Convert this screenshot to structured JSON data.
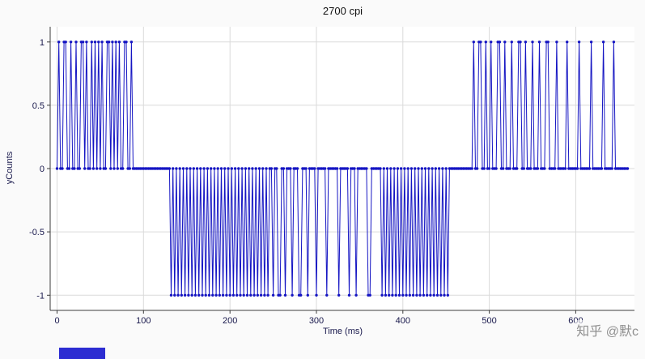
{
  "watermark": "知乎 @默c",
  "colors": {
    "line": "#1515c3",
    "marker": "#1515c3",
    "grid": "#dadada",
    "axis": "#3c3c3c",
    "tick_label": "#17174b",
    "plot_background": "#ffffff",
    "outer_background": "#fafafa",
    "artifact_box": "#2d2dd2",
    "watermark_text": "#8f8f8f"
  },
  "chart_data": {
    "type": "line",
    "title": "2700 cpi",
    "xlabel": "Time (ms)",
    "ylabel": "yCounts",
    "xlim": [
      -8,
      668
    ],
    "ylim": [
      -1.12,
      1.12
    ],
    "x_ticks": [
      0,
      100,
      200,
      300,
      400,
      500,
      600
    ],
    "y_ticks": [
      -1,
      -0.5,
      0,
      0.5,
      1
    ],
    "grid": true,
    "legend": false,
    "marker": "circle",
    "sample_step_ms": 2,
    "x_start": 0,
    "x_end": 660,
    "baseline_value": 0,
    "pulse_groups": [
      {
        "value": 1,
        "pulses": [
          [
            2,
            2
          ],
          [
            8,
            4
          ],
          [
            16,
            2
          ],
          [
            22,
            2
          ],
          [
            28,
            4
          ],
          [
            34,
            2
          ],
          [
            40,
            2
          ],
          [
            44,
            2
          ],
          [
            48,
            2
          ],
          [
            52,
            2
          ],
          [
            58,
            4
          ],
          [
            64,
            2
          ],
          [
            68,
            2
          ],
          [
            72,
            2
          ],
          [
            78,
            4
          ],
          [
            86,
            2
          ]
        ]
      },
      {
        "value": -1,
        "pulses": [
          [
            132,
            2
          ],
          [
            136,
            2
          ],
          [
            140,
            2
          ],
          [
            144,
            2
          ],
          [
            148,
            2
          ],
          [
            152,
            2
          ],
          [
            156,
            2
          ],
          [
            160,
            2
          ],
          [
            164,
            2
          ],
          [
            168,
            2
          ],
          [
            172,
            2
          ],
          [
            176,
            2
          ],
          [
            180,
            2
          ],
          [
            184,
            2
          ],
          [
            188,
            2
          ],
          [
            192,
            2
          ],
          [
            196,
            2
          ],
          [
            200,
            2
          ],
          [
            204,
            2
          ],
          [
            208,
            2
          ],
          [
            212,
            2
          ],
          [
            216,
            2
          ],
          [
            220,
            2
          ],
          [
            224,
            2
          ],
          [
            228,
            2
          ],
          [
            232,
            2
          ],
          [
            236,
            2
          ],
          [
            240,
            2
          ],
          [
            244,
            2
          ],
          [
            250,
            2
          ],
          [
            256,
            4
          ],
          [
            264,
            2
          ],
          [
            272,
            2
          ],
          [
            280,
            4
          ],
          [
            290,
            2
          ],
          [
            300,
            2
          ],
          [
            312,
            2
          ],
          [
            326,
            2
          ],
          [
            338,
            2
          ],
          [
            346,
            2
          ],
          [
            360,
            4
          ],
          [
            376,
            2
          ],
          [
            380,
            2
          ],
          [
            384,
            2
          ],
          [
            388,
            2
          ],
          [
            392,
            2
          ],
          [
            396,
            2
          ],
          [
            400,
            2
          ],
          [
            404,
            2
          ],
          [
            408,
            2
          ],
          [
            412,
            2
          ],
          [
            416,
            2
          ],
          [
            420,
            2
          ],
          [
            424,
            2
          ],
          [
            428,
            2
          ],
          [
            432,
            2
          ],
          [
            436,
            2
          ],
          [
            440,
            2
          ],
          [
            444,
            2
          ],
          [
            448,
            2
          ],
          [
            452,
            2
          ]
        ]
      },
      {
        "value": 1,
        "pulses": [
          [
            482,
            2
          ],
          [
            488,
            4
          ],
          [
            496,
            2
          ],
          [
            502,
            2
          ],
          [
            510,
            4
          ],
          [
            518,
            2
          ],
          [
            526,
            2
          ],
          [
            534,
            4
          ],
          [
            542,
            2
          ],
          [
            550,
            2
          ],
          [
            558,
            2
          ],
          [
            566,
            4
          ],
          [
            578,
            2
          ],
          [
            590,
            2
          ],
          [
            604,
            2
          ],
          [
            618,
            2
          ],
          [
            632,
            2
          ],
          [
            644,
            2
          ]
        ]
      }
    ]
  }
}
